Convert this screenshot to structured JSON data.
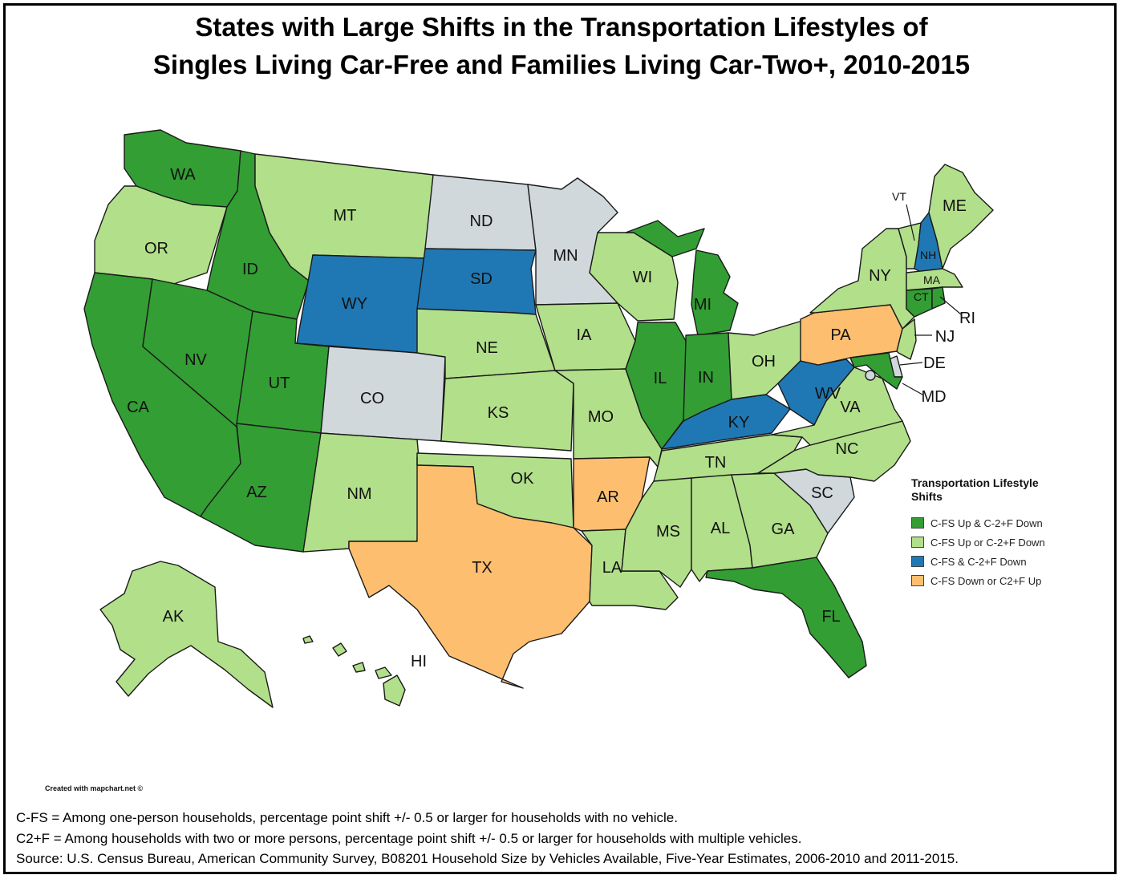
{
  "title_line1": "States with Large Shifts in the Transportation Lifestyles of",
  "title_line2": "Singles Living Car-Free and Families Living Car-Two+, 2010-2015",
  "legend": {
    "title": "Transportation Lifestyle Shifts",
    "items": [
      {
        "key": "g",
        "label": "C-FS Up & C-2+F Down",
        "color": "#339e33"
      },
      {
        "key": "l",
        "label": "C-FS Up or C-2+F Down",
        "color": "#b2df8a"
      },
      {
        "key": "b",
        "label": "C-FS & C-2+F Down",
        "color": "#1f78b4"
      },
      {
        "key": "o",
        "label": "C-FS Down or C2+F Up",
        "color": "#fdbf6f"
      }
    ]
  },
  "no_data_color": "#d0d8dc",
  "states": {
    "WA": "g",
    "OR": "l",
    "CA": "g",
    "ID": "g",
    "NV": "g",
    "UT": "g",
    "AZ": "g",
    "MT": "l",
    "WY": "b",
    "CO": "n",
    "NM": "l",
    "ND": "n",
    "SD": "b",
    "NE": "l",
    "KS": "l",
    "OK": "l",
    "TX": "o",
    "MN": "n",
    "IA": "l",
    "MO": "l",
    "AR": "o",
    "LA": "l",
    "WI": "l",
    "IL": "g",
    "MI": "g",
    "IN": "g",
    "OH": "l",
    "KY": "b",
    "TN": "l",
    "MS": "l",
    "AL": "l",
    "GA": "l",
    "FL": "g",
    "SC": "n",
    "NC": "l",
    "VA": "l",
    "WV": "b",
    "PA": "o",
    "NY": "l",
    "VT": "l",
    "NH": "b",
    "ME": "l",
    "MA": "l",
    "CT": "g",
    "RI": "g",
    "NJ": "l",
    "DE": "n",
    "MD": "g",
    "DC": "n",
    "AK": "l",
    "HI": "l"
  },
  "labels": {
    "WA": "WA",
    "OR": "OR",
    "CA": "CA",
    "ID": "ID",
    "NV": "NV",
    "UT": "UT",
    "AZ": "AZ",
    "MT": "MT",
    "WY": "WY",
    "CO": "CO",
    "NM": "NM",
    "ND": "ND",
    "SD": "SD",
    "NE": "NE",
    "KS": "KS",
    "OK": "OK",
    "TX": "TX",
    "MN": "MN",
    "IA": "IA",
    "MO": "MO",
    "AR": "AR",
    "LA": "LA",
    "WI": "WI",
    "IL": "IL",
    "MI": "MI",
    "IN": "IN",
    "OH": "OH",
    "KY": "KY",
    "TN": "TN",
    "MS": "MS",
    "AL": "AL",
    "GA": "GA",
    "FL": "FL",
    "SC": "SC",
    "NC": "NC",
    "VA": "VA",
    "WV": "WV",
    "PA": "PA",
    "NY": "NY",
    "VT": "VT",
    "NH": "NH",
    "ME": "ME",
    "MA": "MA",
    "CT": "CT",
    "RI": "RI",
    "NJ": "NJ",
    "DE": "DE",
    "MD": "MD",
    "AK": "AK",
    "HI": "HI"
  },
  "credit": "Created with mapchart.net ©",
  "notes": [
    "C-FS = Among one-person households, percentage point shift +/- 0.5 or larger for households with no vehicle.",
    "C2+F = Among households with two or more persons, percentage point shift +/- 0.5 or larger for households with multiple vehicles.",
    "Source: U.S. Census Bureau, American Community Survey, B08201 Household Size by Vehicles Available, Five-Year Estimates, 2006-2010 and 2011-2015."
  ]
}
